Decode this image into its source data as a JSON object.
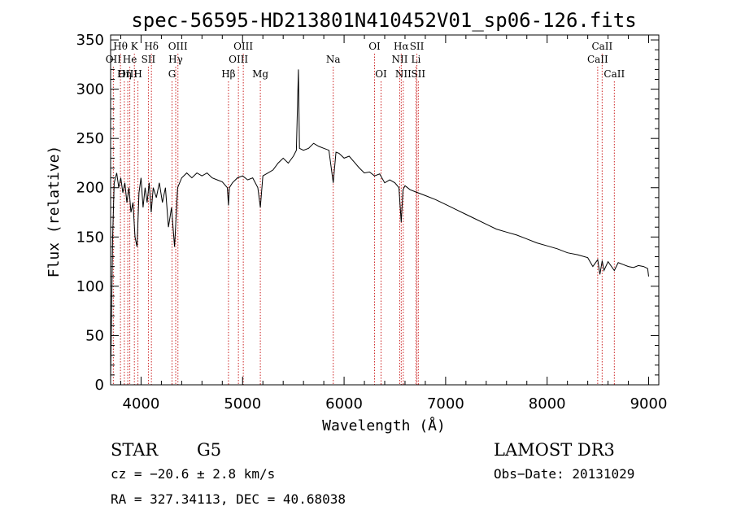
{
  "chart_data": {
    "type": "line",
    "title": "spec-56595-HD213801N410452V01_sp06-126.fits",
    "xlabel": "Wavelength (Å)",
    "ylabel": "Flux (relative)",
    "xlim": [
      3700,
      9100
    ],
    "ylim": [
      0,
      355
    ],
    "x_ticks": [
      4000,
      5000,
      6000,
      7000,
      8000,
      9000
    ],
    "y_ticks": [
      0,
      50,
      100,
      150,
      200,
      250,
      300,
      350
    ],
    "series": [
      {
        "name": "spectrum",
        "x": [
          3700,
          3710,
          3720,
          3735,
          3760,
          3780,
          3800,
          3820,
          3840,
          3860,
          3880,
          3900,
          3920,
          3940,
          3960,
          3980,
          4000,
          4020,
          4040,
          4060,
          4080,
          4100,
          4120,
          4150,
          4180,
          4210,
          4240,
          4270,
          4300,
          4330,
          4360,
          4400,
          4450,
          4500,
          4550,
          4600,
          4650,
          4700,
          4750,
          4800,
          4850,
          4861,
          4870,
          4900,
          4950,
          5000,
          5050,
          5100,
          5150,
          5175,
          5200,
          5250,
          5300,
          5350,
          5400,
          5450,
          5500,
          5530,
          5550,
          5560,
          5600,
          5650,
          5700,
          5750,
          5800,
          5850,
          5893,
          5920,
          5950,
          6000,
          6050,
          6100,
          6150,
          6200,
          6250,
          6300,
          6350,
          6400,
          6450,
          6500,
          6540,
          6563,
          6580,
          6600,
          6650,
          6700,
          6750,
          6800,
          6900,
          7000,
          7100,
          7200,
          7300,
          7400,
          7500,
          7600,
          7700,
          7800,
          7900,
          8000,
          8100,
          8200,
          8300,
          8400,
          8450,
          8498,
          8520,
          8542,
          8560,
          8600,
          8662,
          8700,
          8750,
          8800,
          8850,
          8900,
          8950,
          8990,
          9000
        ],
        "values": [
          5,
          75,
          150,
          205,
          215,
          200,
          210,
          195,
          205,
          185,
          200,
          175,
          185,
          150,
          140,
          195,
          210,
          180,
          200,
          185,
          205,
          175,
          200,
          190,
          205,
          185,
          200,
          160,
          180,
          140,
          200,
          210,
          215,
          210,
          215,
          212,
          215,
          210,
          208,
          206,
          200,
          182,
          200,
          205,
          210,
          212,
          208,
          210,
          200,
          180,
          212,
          215,
          218,
          225,
          230,
          225,
          232,
          238,
          320,
          240,
          238,
          240,
          245,
          242,
          240,
          238,
          205,
          236,
          235,
          230,
          232,
          226,
          220,
          215,
          216,
          212,
          214,
          205,
          208,
          205,
          200,
          165,
          198,
          202,
          198,
          196,
          194,
          192,
          188,
          183,
          178,
          173,
          168,
          163,
          158,
          155,
          152,
          148,
          144,
          141,
          138,
          134,
          132,
          129,
          120,
          127,
          112,
          126,
          116,
          125,
          116,
          124,
          122,
          120,
          119,
          121,
          120,
          118,
          110
        ]
      }
    ],
    "spectral_lines": [
      {
        "name": "Hθ",
        "x": 3797,
        "row": 1
      },
      {
        "name": "OII",
        "x": 3727,
        "row": 2
      },
      {
        "name": "OIII",
        "x": 3869,
        "row": 3
      },
      {
        "name": "K",
        "x": 3934,
        "row": 1
      },
      {
        "name": "He",
        "x": 3889,
        "row": 2
      },
      {
        "name": "Hη",
        "x": 3835,
        "row": 3
      },
      {
        "name": "H",
        "x": 3969,
        "row": 3
      },
      {
        "name": "SII",
        "x": 4072,
        "row": 2
      },
      {
        "name": "Hδ",
        "x": 4102,
        "row": 1
      },
      {
        "name": "OIII",
        "x": 4363,
        "row": 1
      },
      {
        "name": "Hγ",
        "x": 4341,
        "row": 2
      },
      {
        "name": "G",
        "x": 4305,
        "row": 3
      },
      {
        "name": "Hβ",
        "x": 4861,
        "row": 3
      },
      {
        "name": "OIII",
        "x": 4959,
        "row": 2
      },
      {
        "name": "OIII",
        "x": 5007,
        "row": 1
      },
      {
        "name": "Mg",
        "x": 5175,
        "row": 3
      },
      {
        "name": "Na",
        "x": 5893,
        "row": 2
      },
      {
        "name": "OI",
        "x": 6300,
        "row": 1
      },
      {
        "name": "OI",
        "x": 6364,
        "row": 3
      },
      {
        "name": "Hα",
        "x": 6563,
        "row": 1
      },
      {
        "name": "NII",
        "x": 6548,
        "row": 2
      },
      {
        "name": "NII",
        "x": 6583,
        "row": 3
      },
      {
        "name": "SII",
        "x": 6717,
        "row": 1
      },
      {
        "name": "Li",
        "x": 6708,
        "row": 2
      },
      {
        "name": "SII",
        "x": 6731,
        "row": 3
      },
      {
        "name": "CaII",
        "x": 8542,
        "row": 1
      },
      {
        "name": "CaII",
        "x": 8498,
        "row": 2
      },
      {
        "name": "CaII",
        "x": 8662,
        "row": 3
      }
    ]
  },
  "info": {
    "object_class": "STAR",
    "subclass": "G5",
    "survey": "LAMOST DR3",
    "cz": "cz = −20.6 ± 2.8 km/s",
    "obs_date": "Obs−Date: 20131029",
    "coords": "RA = 327.34113, DEC =  40.68038"
  },
  "colors": {
    "line_marker": "#cc2222",
    "spectrum": "#000000",
    "axis": "#000000"
  }
}
